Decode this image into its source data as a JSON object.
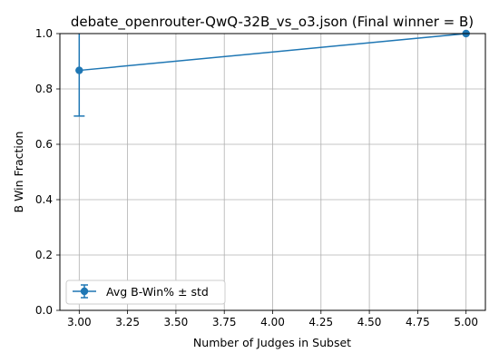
{
  "chart_data": {
    "type": "line",
    "title": "debate_openrouter-QwQ-32B_vs_o3.json (Final winner = B)",
    "xlabel": "Number of Judges in Subset",
    "ylabel": "B Win Fraction",
    "xlim": [
      2.9,
      5.1
    ],
    "ylim": [
      0.0,
      1.0
    ],
    "grid": true,
    "legend_position": "lower-left",
    "xticks": [
      3.0,
      3.25,
      3.5,
      3.75,
      4.0,
      4.25,
      4.5,
      4.75,
      5.0
    ],
    "xtick_labels": [
      "3.00",
      "3.25",
      "3.50",
      "3.75",
      "4.00",
      "4.25",
      "4.50",
      "4.75",
      "5.00"
    ],
    "yticks": [
      0.0,
      0.2,
      0.4,
      0.6,
      0.8,
      1.0
    ],
    "ytick_labels": [
      "0.0",
      "0.2",
      "0.4",
      "0.6",
      "0.8",
      "1.0"
    ],
    "series": [
      {
        "name": "Avg B-Win% ± std",
        "color": "#1f77b4",
        "marker": "circle",
        "x": [
          3,
          5
        ],
        "y": [
          0.867,
          1.0
        ],
        "yerr": [
          0.165,
          0.0
        ]
      }
    ]
  }
}
